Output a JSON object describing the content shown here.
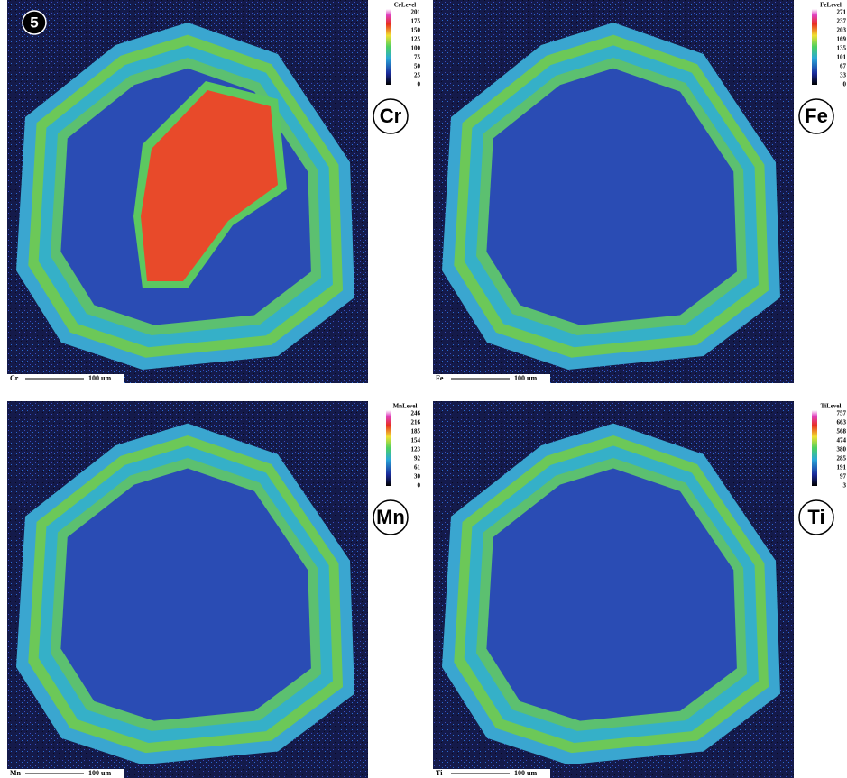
{
  "figure_label": "5",
  "panels": [
    {
      "element": "Cr",
      "legend_title": "CrLevel",
      "levels": [
        201,
        175,
        150,
        125,
        100,
        75,
        50,
        25,
        0
      ],
      "scale_tag": "Cr",
      "scale_text": "100 um"
    },
    {
      "element": "Fe",
      "legend_title": "FeLevel",
      "levels": [
        271,
        237,
        203,
        169,
        135,
        101,
        67,
        33,
        0
      ],
      "scale_tag": "Fe",
      "scale_text": "100 um"
    },
    {
      "element": "Mn",
      "legend_title": "MnLevel",
      "levels": [
        246,
        216,
        185,
        154,
        123,
        92,
        61,
        30,
        0
      ],
      "scale_tag": "Mn",
      "scale_text": "100 um"
    },
    {
      "element": "Ti",
      "legend_title": "TiLevel",
      "levels": [
        757,
        663,
        568,
        474,
        380,
        285,
        191,
        97,
        3
      ],
      "scale_tag": "Ti",
      "scale_text": "100 um"
    }
  ]
}
